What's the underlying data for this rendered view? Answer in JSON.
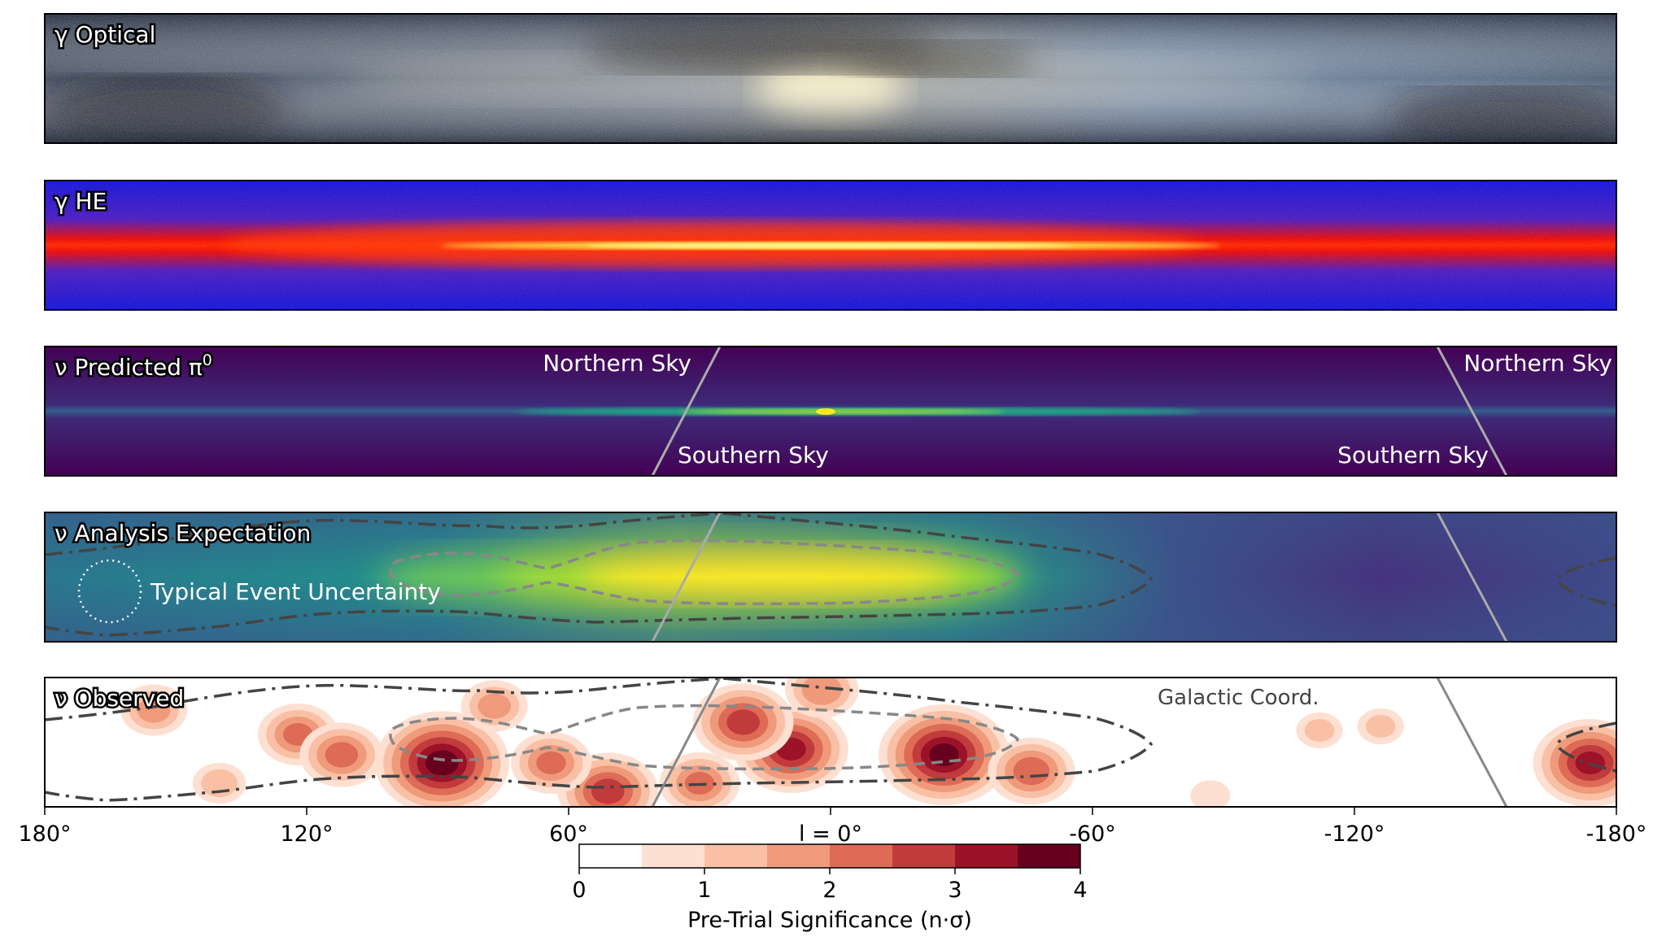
{
  "chart_data": {
    "type": "heatmap",
    "panels": [
      {
        "title": "γ Optical"
      },
      {
        "title": "γ HE"
      },
      {
        "title": "ν Predicted π",
        "title_sup": "0",
        "labels": [
          "Northern Sky",
          "Southern Sky",
          "Northern Sky",
          "Southern Sky"
        ]
      },
      {
        "title": "ν Analysis Expectation",
        "labels": [
          "Typical Event Uncertainty"
        ]
      },
      {
        "title": "ν Observed",
        "labels": [
          "Galactic Coord."
        ]
      }
    ],
    "xaxis": {
      "range": [
        180,
        -180
      ],
      "ticks": [
        180,
        120,
        60,
        0,
        -60,
        -120,
        -180
      ],
      "tick_labels": [
        "180°",
        "120°",
        "60°",
        "l = 0°",
        "-60°",
        "-120°",
        "-180°"
      ]
    },
    "colorbar": {
      "label": "Pre-Trial Significance (n·σ)",
      "range": [
        0,
        4
      ],
      "ticks": [
        "0",
        "1",
        "2",
        "3",
        "4"
      ],
      "levels": [
        0,
        0.5,
        1,
        1.5,
        2,
        2.5,
        3,
        3.5,
        4
      ],
      "colors": [
        "#ffffff",
        "#fde0d2",
        "#f9c0a5",
        "#ef9a7b",
        "#dd6b56",
        "#c13b3c",
        "#9c1229",
        "#67001f"
      ]
    },
    "observed_hotspots": [
      {
        "l": 89,
        "sigma": 3.6
      },
      {
        "l": 9,
        "sigma": 3.0
      },
      {
        "l": -26,
        "sigma": 3.5
      },
      {
        "l": 20,
        "sigma": 2.6
      },
      {
        "l": -174,
        "sigma": 3.0
      },
      {
        "l": 51,
        "sigma": 2.6
      },
      {
        "l": -46,
        "sigma": 2.2
      },
      {
        "l": 122,
        "sigma": 2.0
      },
      {
        "l": 112,
        "sigma": 2.1
      },
      {
        "l": 155,
        "sigma": 1.6
      },
      {
        "l": -126,
        "sigma": 1.0
      },
      {
        "l": -112,
        "sigma": 1.0
      },
      {
        "l": 2,
        "sigma": 1.8
      },
      {
        "l": -87,
        "sigma": 0.8
      },
      {
        "l": 64,
        "sigma": 2.0
      },
      {
        "l": 77,
        "sigma": 1.6
      },
      {
        "l": 140,
        "sigma": 1.2
      },
      {
        "l": 30,
        "sigma": 2.0
      }
    ]
  }
}
